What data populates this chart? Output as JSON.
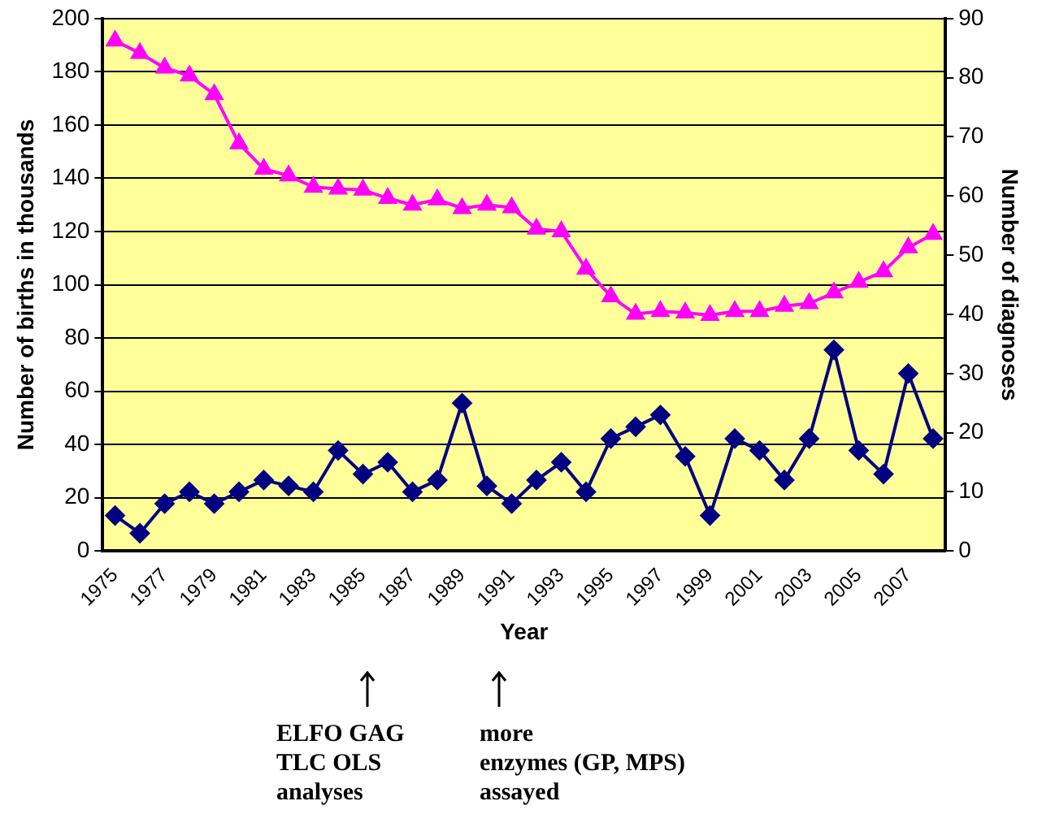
{
  "chart_data": {
    "type": "line",
    "xlabel": "Year",
    "ylabel": "Number of births in thousands",
    "y2label": "Number of diagnoses",
    "categories": [
      "1975",
      null,
      "1977",
      null,
      "1979",
      null,
      "1981",
      null,
      "1983",
      null,
      "1985",
      null,
      "1987",
      null,
      "1989",
      null,
      "1991",
      null,
      "1993",
      null,
      "1995",
      null,
      "1997",
      null,
      "1999",
      null,
      "2001",
      null,
      "2003",
      null,
      "2005",
      null,
      "2007",
      null
    ],
    "series": [
      {
        "color": "#ff00ff",
        "marker": "triangle",
        "values": [
          191.6,
          187,
          181.5,
          178.5,
          171.5,
          153,
          143.5,
          141,
          136.7,
          136,
          135.6,
          132.5,
          130,
          132,
          128.7,
          130,
          129,
          121,
          120,
          106,
          95.6,
          89,
          90,
          89.5,
          88.6,
          90,
          90,
          92,
          93,
          97,
          101,
          105,
          114,
          119
        ]
      },
      {
        "color": "#000080",
        "marker": "diamond",
        "axis": "y2",
        "values": [
          6,
          3,
          8,
          10,
          8,
          10,
          12,
          11,
          10,
          17,
          13,
          15,
          10,
          12,
          25,
          11,
          8,
          12,
          15,
          10,
          19,
          21,
          23,
          16,
          6,
          19,
          17,
          12,
          19,
          34,
          17,
          13,
          30,
          19
        ]
      }
    ],
    "ylim": [
      0,
      200
    ],
    "yticks": [
      0,
      20,
      40,
      60,
      80,
      100,
      120,
      140,
      160,
      180,
      200
    ],
    "y2lim": [
      0,
      90
    ],
    "y2ticks": [
      0,
      10,
      20,
      30,
      40,
      50,
      60,
      70,
      80,
      90
    ],
    "grid": "y",
    "legend": false,
    "annotations": [
      "ELFO GAG\nTLC OLS\nanalyses",
      "more\nenzymes (GP, MPS)\nassayed"
    ]
  }
}
